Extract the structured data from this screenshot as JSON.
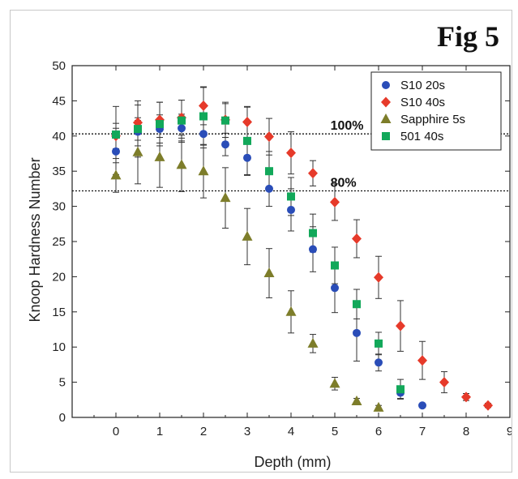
{
  "figure_label": "Fig 5",
  "chart_data": {
    "type": "scatter",
    "xlabel": "Depth (mm)",
    "ylabel": "Knoop Hardness Number",
    "xlim": [
      -1,
      9
    ],
    "ylim": [
      0,
      50
    ],
    "x_ticks": [
      0,
      1,
      2,
      3,
      4,
      5,
      6,
      7,
      8,
      9
    ],
    "y_ticks": [
      0,
      5,
      10,
      15,
      20,
      25,
      30,
      35,
      40,
      45,
      50
    ],
    "error_bars": true,
    "legend_position": "top-right",
    "reference_lines": [
      {
        "y": 40.3,
        "label": "100%"
      },
      {
        "y": 32.2,
        "label": "80%"
      }
    ],
    "series": [
      {
        "name": "S10 20s",
        "marker": "circle",
        "color": "#2a4db8",
        "points": [
          {
            "x": 0,
            "y": 37.8,
            "err": 3.3
          },
          {
            "x": 0.5,
            "y": 40.6,
            "err": 2.0
          },
          {
            "x": 1,
            "y": 41.0,
            "err": 2.0
          },
          {
            "x": 1.5,
            "y": 41.1,
            "err": 2.0
          },
          {
            "x": 2,
            "y": 40.3,
            "err": 2.0
          },
          {
            "x": 2.5,
            "y": 38.8,
            "err": 1.6
          },
          {
            "x": 3,
            "y": 36.9,
            "err": 2.5
          },
          {
            "x": 3.5,
            "y": 32.5,
            "err": 2.5
          },
          {
            "x": 4,
            "y": 29.5,
            "err": 3.0
          },
          {
            "x": 4.5,
            "y": 23.9,
            "err": 3.2
          },
          {
            "x": 5,
            "y": 18.4,
            "err": 3.5
          },
          {
            "x": 5.5,
            "y": 12.0,
            "err": 4.0
          },
          {
            "x": 6,
            "y": 7.8,
            "err": 1.2
          },
          {
            "x": 6.5,
            "y": 3.5,
            "err": 0.8
          },
          {
            "x": 7,
            "y": 1.7,
            "err": 0.2
          }
        ]
      },
      {
        "name": "S10 40s",
        "marker": "diamond",
        "color": "#e63a2a",
        "points": [
          {
            "x": 0,
            "y": 40.0,
            "err": 1.8
          },
          {
            "x": 0.5,
            "y": 41.9,
            "err": 2.5
          },
          {
            "x": 1,
            "y": 42.3,
            "err": 2.5
          },
          {
            "x": 1.5,
            "y": 42.6,
            "err": 2.5
          },
          {
            "x": 2,
            "y": 44.3,
            "err": 2.7
          },
          {
            "x": 2.5,
            "y": 42.3,
            "err": 2.5
          },
          {
            "x": 3,
            "y": 42.0,
            "err": 2.2
          },
          {
            "x": 3.5,
            "y": 39.9,
            "err": 2.6
          },
          {
            "x": 4,
            "y": 37.6,
            "err": 3.0
          },
          {
            "x": 4.5,
            "y": 34.7,
            "err": 1.8
          },
          {
            "x": 5,
            "y": 30.6,
            "err": 2.6
          },
          {
            "x": 5.5,
            "y": 25.4,
            "err": 2.7
          },
          {
            "x": 6,
            "y": 19.9,
            "err": 3.0
          },
          {
            "x": 6.5,
            "y": 13.0,
            "err": 3.6
          },
          {
            "x": 7,
            "y": 8.1,
            "err": 2.7
          },
          {
            "x": 7.5,
            "y": 5.0,
            "err": 1.5
          },
          {
            "x": 8,
            "y": 2.9,
            "err": 0.5
          },
          {
            "x": 8.5,
            "y": 1.7,
            "err": 0.3
          }
        ]
      },
      {
        "name": "Sapphire 5s",
        "marker": "triangle",
        "color": "#7d7d2a",
        "points": [
          {
            "x": 0,
            "y": 34.4,
            "err": 2.4
          },
          {
            "x": 0.5,
            "y": 37.7,
            "err": 4.5
          },
          {
            "x": 1,
            "y": 37.0,
            "err": 4.3
          },
          {
            "x": 1.5,
            "y": 35.9,
            "err": 3.8
          },
          {
            "x": 2,
            "y": 35.0,
            "err": 3.8
          },
          {
            "x": 2.5,
            "y": 31.2,
            "err": 4.3
          },
          {
            "x": 3,
            "y": 25.7,
            "err": 4.0
          },
          {
            "x": 3.5,
            "y": 20.5,
            "err": 3.5
          },
          {
            "x": 4,
            "y": 15.0,
            "err": 3.0
          },
          {
            "x": 4.5,
            "y": 10.5,
            "err": 1.3
          },
          {
            "x": 5,
            "y": 4.8,
            "err": 0.9
          },
          {
            "x": 5.5,
            "y": 2.3,
            "err": 0.4
          },
          {
            "x": 6,
            "y": 1.4,
            "err": 0.3
          }
        ]
      },
      {
        "name": "501 40s",
        "marker": "square",
        "color": "#12a85a",
        "points": [
          {
            "x": 0,
            "y": 40.2,
            "err": 4.0
          },
          {
            "x": 0.5,
            "y": 41.0,
            "err": 4.0
          },
          {
            "x": 1,
            "y": 41.7,
            "err": 3.1
          },
          {
            "x": 1.5,
            "y": 42.2,
            "err": 2.9
          },
          {
            "x": 2,
            "y": 42.8,
            "err": 4.1
          },
          {
            "x": 2.5,
            "y": 42.2,
            "err": 2.4
          },
          {
            "x": 3,
            "y": 39.3,
            "err": 4.8
          },
          {
            "x": 3.5,
            "y": 35.0,
            "err": 2.8
          },
          {
            "x": 4,
            "y": 31.4,
            "err": 2.7
          },
          {
            "x": 4.5,
            "y": 26.2,
            "err": 2.7
          },
          {
            "x": 5,
            "y": 21.6,
            "err": 2.6
          },
          {
            "x": 5.5,
            "y": 16.1,
            "err": 2.1
          },
          {
            "x": 6,
            "y": 10.5,
            "err": 1.6
          },
          {
            "x": 6.5,
            "y": 4.0,
            "err": 1.4
          }
        ]
      }
    ]
  }
}
